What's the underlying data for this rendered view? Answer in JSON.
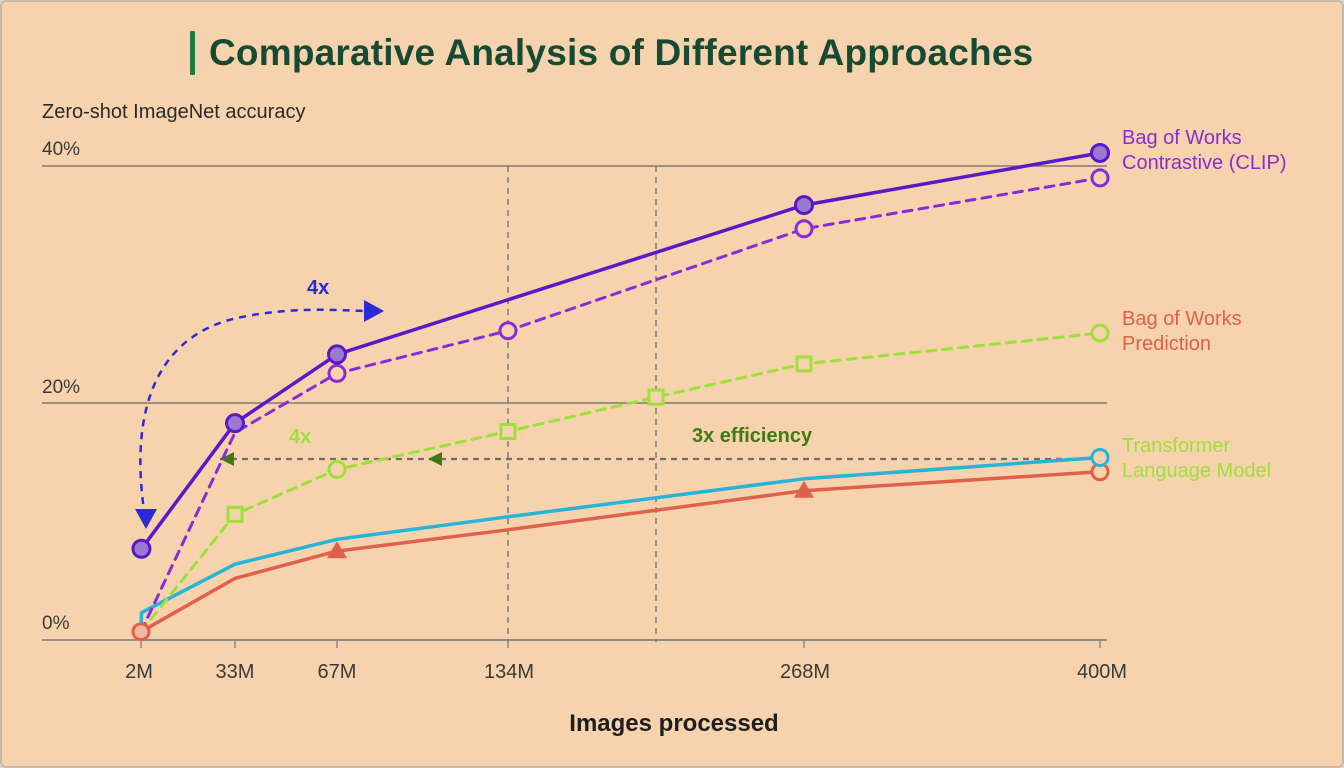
{
  "colors": {
    "background": "#f6d3ad",
    "title": "#174a33",
    "title_accent": "#1f7a45",
    "clip": "#5a18c8",
    "bow_contrastive": "#8a2bd8",
    "bow_prediction": "#9ee03a",
    "transformer_cyan": "#26b4d8",
    "transformer_red": "#e0604a",
    "legend_prediction": "#e0604a",
    "legend_transformer": "#9ee03a",
    "annot_blue": "#2a2ad8",
    "annot_green": "#3f7a12"
  },
  "chart_data": {
    "type": "line",
    "title": "Comparative Analysis of Different Approaches",
    "xlabel": "Images processed",
    "ylabel": "Zero-shot ImageNet accuracy",
    "x_ticks": [
      "2M",
      "33M",
      "67M",
      "134M",
      "268M",
      "400M"
    ],
    "y_ticks": [
      "0%",
      "20%",
      "40%"
    ],
    "ylim": [
      0,
      40
    ],
    "gridlines": "horizontal at 0%, 20%, 40%; vertical dashed at 134M and midway between 134M and 268M",
    "series": [
      {
        "name": "Bag of Works Contrastive (CLIP)",
        "style": "solid",
        "marker": "filled-circle",
        "points": [
          [
            2.15,
            7.7
          ],
          [
            33,
            18.3
          ],
          [
            67,
            24.1
          ],
          [
            268,
            36.7
          ],
          [
            400,
            41.1
          ]
        ]
      },
      {
        "name": "Bag of Works Contrastive (CLIP) - dashed",
        "style": "dashed",
        "marker": "open-circle",
        "points": [
          [
            2,
            0.7
          ],
          [
            33,
            17.5
          ],
          [
            67,
            22.5
          ],
          [
            134,
            26.1
          ],
          [
            268,
            34.7
          ],
          [
            400,
            39.0
          ]
        ]
      },
      {
        "name": "Bag of Works Prediction",
        "style": "dashed",
        "marker": "open-square",
        "points": [
          [
            2,
            0.7
          ],
          [
            33,
            10.6
          ],
          [
            67,
            14.4
          ],
          [
            134,
            17.6
          ],
          [
            201,
            20.5
          ],
          [
            268,
            23.3
          ],
          [
            400,
            25.9
          ]
        ]
      },
      {
        "name": "Transformer Language Model (cyan)",
        "style": "solid",
        "marker": "open-circle-end",
        "points": [
          [
            2,
            0.7
          ],
          [
            2.15,
            2.3
          ],
          [
            33,
            6.4
          ],
          [
            67,
            8.5
          ],
          [
            134,
            10.4
          ],
          [
            268,
            13.6
          ],
          [
            400,
            15.4
          ]
        ]
      },
      {
        "name": "Transformer Language Model (red)",
        "style": "solid",
        "marker": "triangle",
        "points": [
          [
            2,
            0.7
          ],
          [
            33,
            5.2
          ],
          [
            67,
            7.5
          ],
          [
            134,
            9.3
          ],
          [
            268,
            12.6
          ],
          [
            400,
            14.2
          ]
        ]
      }
    ],
    "legend": [
      {
        "lines": [
          "Bag of Works",
          "Contrastive (CLIP)"
        ],
        "color_key": "bow_contrastive"
      },
      {
        "lines": [
          "Bag of Works",
          "Prediction"
        ],
        "color_key": "legend_prediction"
      },
      {
        "lines": [
          "Transformer",
          "Language Model"
        ],
        "color_key": "legend_transformer"
      }
    ],
    "annotations": [
      {
        "text": "4x",
        "color_key": "annot_blue"
      },
      {
        "text": "4x",
        "color_key": "bow_prediction"
      },
      {
        "text": "3x efficiency",
        "color_key": "annot_green"
      }
    ]
  }
}
